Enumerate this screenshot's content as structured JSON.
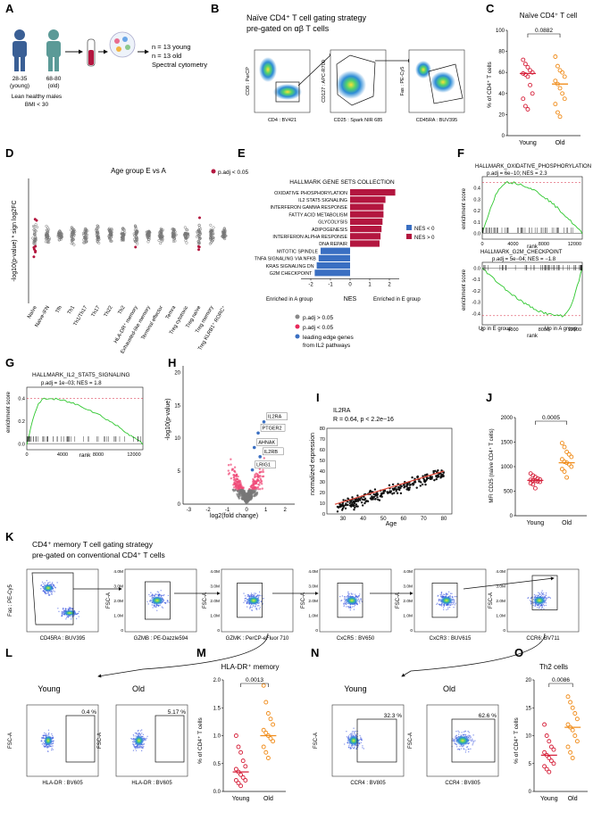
{
  "panels": {
    "A": {
      "letter": "A",
      "young_label": "28-35\n(young)",
      "old_label": "68-80\n(old)",
      "young_line1": "28-35",
      "young_line2": "(young)",
      "old_line1": "68-80",
      "old_line2": "(old)",
      "caption_line1": "Lean healthy males",
      "caption_line2": "BMI < 30",
      "n_young": "n = 13 young",
      "n_old": "n = 13 old",
      "method": "Spectral cytometry"
    },
    "B": {
      "letter": "B",
      "title_line1": "Naïve CD4⁺ T cell gating strategy",
      "title_line2": "pre-gated on αβ T cells",
      "plots": [
        {
          "ylabel": "CD8 : PerCP",
          "xlabel": "CD4 : BV421"
        },
        {
          "ylabel": "CD127 : APC-R700",
          "xlabel": "CD25 : Spark NIR 685"
        },
        {
          "ylabel": "Fas : PE-Cy5",
          "xlabel": "CD45RA : BUV395"
        }
      ]
    },
    "C": {
      "letter": "C",
      "title": "Naïve CD4⁺ T cell",
      "pvalue": "0.0882",
      "ylabel": "% of CD4⁺ T cells",
      "groups": [
        "Young",
        "Old"
      ],
      "yticks": [
        "0",
        "20",
        "40",
        "60",
        "80",
        "100"
      ]
    },
    "D": {
      "letter": "D",
      "title": "Age group E vs A",
      "legend": "p.adj < 0.05",
      "ylabel": "-log10(p-value) * sign log2FC",
      "categories": [
        "Naïve",
        "Naïve-IFN",
        "Tfh",
        "Th1",
        "Th1/Th17",
        "Th17",
        "Th22",
        "Th2",
        "HLA-DR⁺ memory",
        "Exhausted-like memory",
        "Terminal effector",
        "Temra",
        "Treg cytotoxic",
        "Treg naïve",
        "Treg memory",
        "Treg KLRB1⁺ RORC⁺"
      ]
    },
    "E": {
      "letter": "E",
      "title": "HALLMARK GENE SETS COLLECTION",
      "legend_neg": "NES < 0",
      "legend_pos": "NES > 0",
      "xlabel": "NES",
      "left_note": "Enriched in A group",
      "right_note": "Enriched in E group",
      "xticks": [
        "-2",
        "-1",
        "0",
        "1",
        "2"
      ]
    },
    "F": {
      "letter": "F",
      "top_title": "HALLMARK_OXIDATIVE_PHOSPHORYLATION",
      "top_stats": "p.adj = 6e−10; NES = 2.3",
      "bottom_title": "HALLMARK_G2M_CHECKPOINT",
      "bottom_stats": "p.adj = 5e−04; NES = −1.8",
      "ylabel": "enrichment score",
      "xlabel": "rank",
      "note_left": "Up in E group",
      "note_right": "Up in A group",
      "top_yticks": [
        "0.0",
        "0.1",
        "0.2",
        "0.3",
        "0.4"
      ],
      "bottom_yticks": [
        "0.0",
        "-0.1",
        "-0.2",
        "-0.3",
        "-0.4"
      ],
      "xticks": [
        "0",
        "4000",
        "8000",
        "12000"
      ]
    },
    "G": {
      "letter": "G",
      "title": "HALLMARK_IL2_STAT5_SIGNALING",
      "stats": "p.adj = 1e−03; NES = 1.8",
      "ylabel": "enrichment score",
      "xlabel": "rank",
      "yticks": [
        "0.4",
        "0.2",
        "0.0"
      ],
      "xticks": [
        "0",
        "4000",
        "8000",
        "12000"
      ]
    },
    "H": {
      "letter": "H",
      "legend1": "p.adj > 0.05",
      "legend2": "p.adj < 0.05",
      "legend3_line1": "leading edge genes",
      "legend3_line2": "from IL2 pathways",
      "ylabel": "-log10(p-value)",
      "xlabel": "log2(fold change)",
      "labels": [
        "IL2RA",
        "PTGER2",
        "AHNAK",
        "IL2RB",
        "LRIG1"
      ],
      "yticks": [
        "0",
        "5",
        "10",
        "15",
        "20"
      ],
      "xticks": [
        "-3",
        "-2",
        "-1",
        "0",
        "1",
        "2"
      ]
    },
    "I": {
      "letter": "I",
      "title": "IL2RA",
      "stats": "R = 0.64, p < 2.2e−16",
      "ylabel": "normalized expression",
      "xlabel": "Age",
      "yticks": [
        "0",
        "10",
        "20",
        "30",
        "40",
        "50",
        "60",
        "70",
        "80"
      ],
      "xticks": [
        "30",
        "40",
        "50",
        "60",
        "70",
        "80"
      ]
    },
    "J": {
      "letter": "J",
      "pvalue": "0.0005",
      "ylabel": "MFI CD25 (naïve CD4⁺ T cells)",
      "groups": [
        "Young",
        "Old"
      ],
      "yticks": [
        "0",
        "500",
        "1000",
        "1500",
        "2000"
      ]
    },
    "K": {
      "letter": "K",
      "title_line1": "CD4⁺ memory T cell gating strategy",
      "title_line2": "pre-gated on conventional CD4⁺ T cells",
      "plots": [
        {
          "ylabel": "Fas : PE-Cy5",
          "xlabel": "CD45RA : BUV395"
        },
        {
          "ylabel": "FSC-A",
          "xlabel": "GZMB : PE-Dazzle594"
        },
        {
          "ylabel": "FSC-A",
          "xlabel": "GZMK : PerCP-eFluor 710"
        },
        {
          "ylabel": "FSC-A",
          "xlabel": "CxCR5 : BV650"
        },
        {
          "ylabel": "FSC-A",
          "xlabel": "CxCR3 : BUV615"
        },
        {
          "ylabel": "FSC-A",
          "xlabel": "CCR6: BV711"
        }
      ],
      "yticks": [
        "4.0M",
        "3.0M",
        "2.0M",
        "1.0M",
        "0"
      ]
    },
    "L": {
      "letter": "L",
      "young": "Young",
      "old": "Old",
      "young_pct": "0.4 %",
      "old_pct": "5.17 %",
      "ylabel": "FSC-A",
      "xlabel": "HLA-DR : BV605"
    },
    "M": {
      "letter": "M",
      "title": "HLA-DR⁺ memory",
      "pvalue": "0.0013",
      "ylabel": "% of CD4⁺ T cells",
      "groups": [
        "Young",
        "Old"
      ],
      "yticks": [
        "0.0",
        "0.5",
        "1.0",
        "1.5",
        "2.0"
      ]
    },
    "N": {
      "letter": "N",
      "young": "Young",
      "old": "Old",
      "young_pct": "32.3 %",
      "old_pct": "62.6 %",
      "ylabel": "FSC-A",
      "xlabel": "CCR4 : BV805"
    },
    "O": {
      "letter": "O",
      "title": "Th2 cells",
      "pvalue": "0.0086",
      "ylabel": "% of CD4⁺ T cells",
      "groups": [
        "Young",
        "Old"
      ],
      "yticks": [
        "0",
        "5",
        "10",
        "15",
        "20"
      ]
    }
  },
  "chart_data": [
    {
      "type": "scatter",
      "panel": "C",
      "title": "Naïve CD4⁺ T cell",
      "ylabel": "% of CD4⁺ T cells",
      "ylim": [
        0,
        100
      ],
      "categories": [
        "Young",
        "Old"
      ],
      "series": [
        {
          "name": "Young",
          "color": "#d6203a",
          "values": [
            72,
            68,
            65,
            62,
            60,
            59,
            58,
            56,
            48,
            40,
            35,
            28,
            25
          ],
          "median": 59
        },
        {
          "name": "Old",
          "color": "#f08c1a",
          "values": [
            75,
            66,
            62,
            60,
            56,
            52,
            49,
            45,
            40,
            35,
            30,
            22,
            18
          ],
          "median": 49
        }
      ]
    },
    {
      "type": "bar",
      "panel": "E",
      "title": "HALLMARK GENE SETS COLLECTION",
      "xlabel": "NES",
      "xlim": [
        -2.5,
        2.5
      ],
      "categories": [
        "OXIDATIVE PHOSPHORYLATION",
        "IL2 STAT5 SIGNALING",
        "INTERFERON GAMMA RESPONSE",
        "FATTY ACID METABOLISM",
        "GLYCOLYSIS",
        "ADIPOGENESIS",
        "INTERFERON ALPHA RESPONSE",
        "DNA REPAIR",
        "MITOTIC SPINDLE",
        "TNFA SIGNALING VIA NFKB",
        "KRAS SIGNALING DN",
        "G2M CHECKPOINT"
      ],
      "values": [
        2.3,
        1.8,
        1.7,
        1.7,
        1.65,
        1.6,
        1.55,
        1.5,
        -1.5,
        -1.6,
        -1.7,
        -1.8
      ],
      "colors": {
        "pos": "#b3163f",
        "neg": "#3a6fc2"
      }
    },
    {
      "type": "scatter",
      "panel": "J",
      "ylabel": "MFI CD25 (naïve CD4⁺ T cells)",
      "ylim": [
        0,
        2000
      ],
      "categories": [
        "Young",
        "Old"
      ],
      "series": [
        {
          "name": "Young",
          "color": "#d6203a",
          "values": [
            860,
            820,
            790,
            760,
            740,
            730,
            720,
            710,
            700,
            690,
            660,
            640,
            560
          ],
          "median": 720
        },
        {
          "name": "Old",
          "color": "#f08c1a",
          "values": [
            1480,
            1400,
            1300,
            1250,
            1200,
            1150,
            1100,
            1080,
            1050,
            1000,
            950,
            900,
            780
          ],
          "median": 1080
        }
      ]
    },
    {
      "type": "scatter",
      "panel": "M",
      "title": "HLA-DR⁺ memory",
      "ylabel": "% of CD4⁺ T cells",
      "ylim": [
        0,
        2.0
      ],
      "categories": [
        "Young",
        "Old"
      ],
      "series": [
        {
          "name": "Young",
          "color": "#d6203a",
          "values": [
            1.0,
            0.8,
            0.7,
            0.55,
            0.45,
            0.4,
            0.35,
            0.3,
            0.25,
            0.2,
            0.2,
            0.15,
            0.1
          ],
          "median": 0.35
        },
        {
          "name": "Old",
          "color": "#f08c1a",
          "values": [
            1.9,
            1.6,
            1.4,
            1.3,
            1.2,
            1.1,
            1.05,
            1.0,
            0.95,
            0.9,
            0.8,
            0.7,
            0.6
          ],
          "median": 1.0
        }
      ]
    },
    {
      "type": "scatter",
      "panel": "O",
      "title": "Th2 cells",
      "ylabel": "% of CD4⁺ T cells",
      "ylim": [
        0,
        20
      ],
      "categories": [
        "Young",
        "Old"
      ],
      "series": [
        {
          "name": "Young",
          "color": "#d6203a",
          "values": [
            12,
            10,
            9,
            8,
            7.5,
            7,
            6.5,
            6,
            5.5,
            5,
            4.5,
            4,
            3.5
          ],
          "median": 6.5
        },
        {
          "name": "Old",
          "color": "#f08c1a",
          "values": [
            17,
            16,
            15,
            14,
            13,
            12,
            11.5,
            11,
            10,
            9,
            8,
            7,
            6
          ],
          "median": 11.5
        }
      ]
    }
  ]
}
